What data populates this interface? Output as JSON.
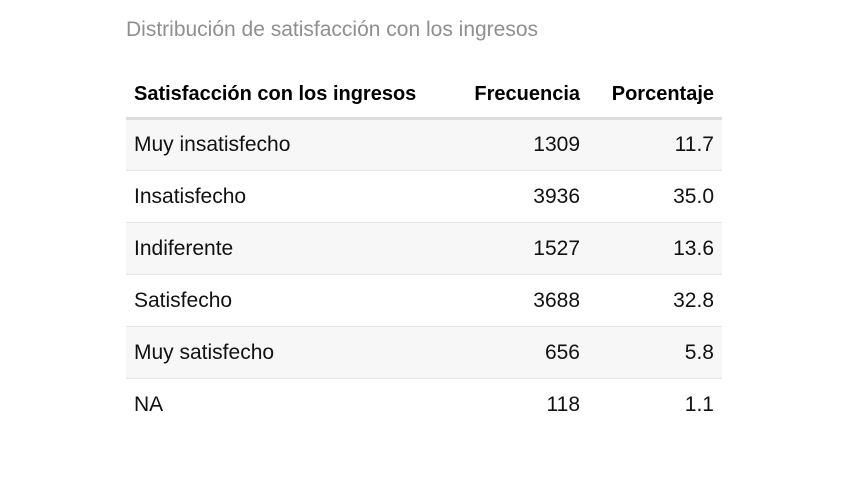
{
  "chart_data": {
    "type": "table",
    "title": "Distribución de satisfacción con los ingresos",
    "columns": [
      "Satisfacción con los ingresos",
      "Frecuencia",
      "Porcentaje"
    ],
    "rows": [
      [
        "Muy insatisfecho",
        "1309",
        "11.7"
      ],
      [
        "Insatisfecho",
        "3936",
        "35.0"
      ],
      [
        "Indiferente",
        "1527",
        "13.6"
      ],
      [
        "Satisfecho",
        "3688",
        "32.8"
      ],
      [
        "Muy satisfecho",
        "656",
        "5.8"
      ],
      [
        "NA",
        "118",
        "1.1"
      ]
    ]
  }
}
